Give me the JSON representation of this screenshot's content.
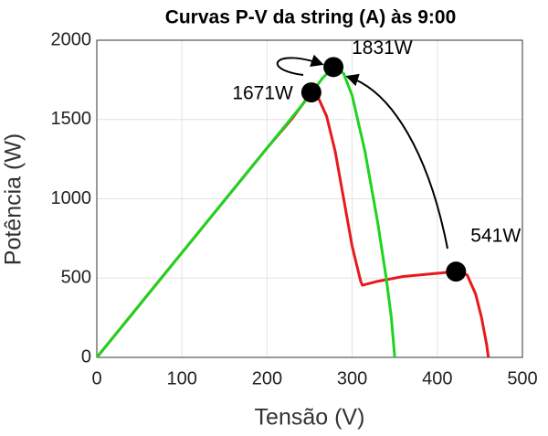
{
  "chart_data": {
    "type": "line",
    "title": "Curvas P-V da string (A) às 9:00",
    "x_label": "Tensão (V)",
    "y_label": "Potência (W)",
    "series": [
      {
        "color": "#e8191c",
        "x": [
          0,
          50,
          100,
          150,
          200,
          230,
          245,
          252,
          260,
          270,
          280,
          290,
          300,
          310,
          312,
          330,
          360,
          390,
          410,
          422,
          435,
          445,
          452,
          458,
          460
        ],
        "values": [
          0,
          330,
          660,
          990,
          1320,
          1510,
          1620,
          1671,
          1640,
          1520,
          1300,
          1000,
          700,
          480,
          455,
          480,
          510,
          525,
          535,
          541,
          520,
          400,
          250,
          80,
          0
        ]
      },
      {
        "color": "#1ed41e",
        "x": [
          0,
          50,
          100,
          150,
          200,
          250,
          265,
          278,
          290,
          300,
          315,
          330,
          340,
          346,
          350
        ],
        "values": [
          0,
          330,
          660,
          990,
          1320,
          1650,
          1760,
          1831,
          1790,
          1650,
          1300,
          850,
          500,
          250,
          0
        ]
      }
    ],
    "annotations": [
      {
        "x": 278,
        "y": 1831,
        "label": "1831W"
      },
      {
        "x": 252,
        "y": 1671,
        "label": "1671W"
      },
      {
        "x": 422,
        "y": 541,
        "label": "541W"
      }
    ],
    "xlim": [
      0,
      500
    ],
    "xticks": [
      0,
      100,
      200,
      300,
      400,
      500
    ],
    "ylim": [
      0,
      2000
    ],
    "yticks": [
      0,
      500,
      1000,
      1500,
      2000
    ],
    "grid": true
  }
}
